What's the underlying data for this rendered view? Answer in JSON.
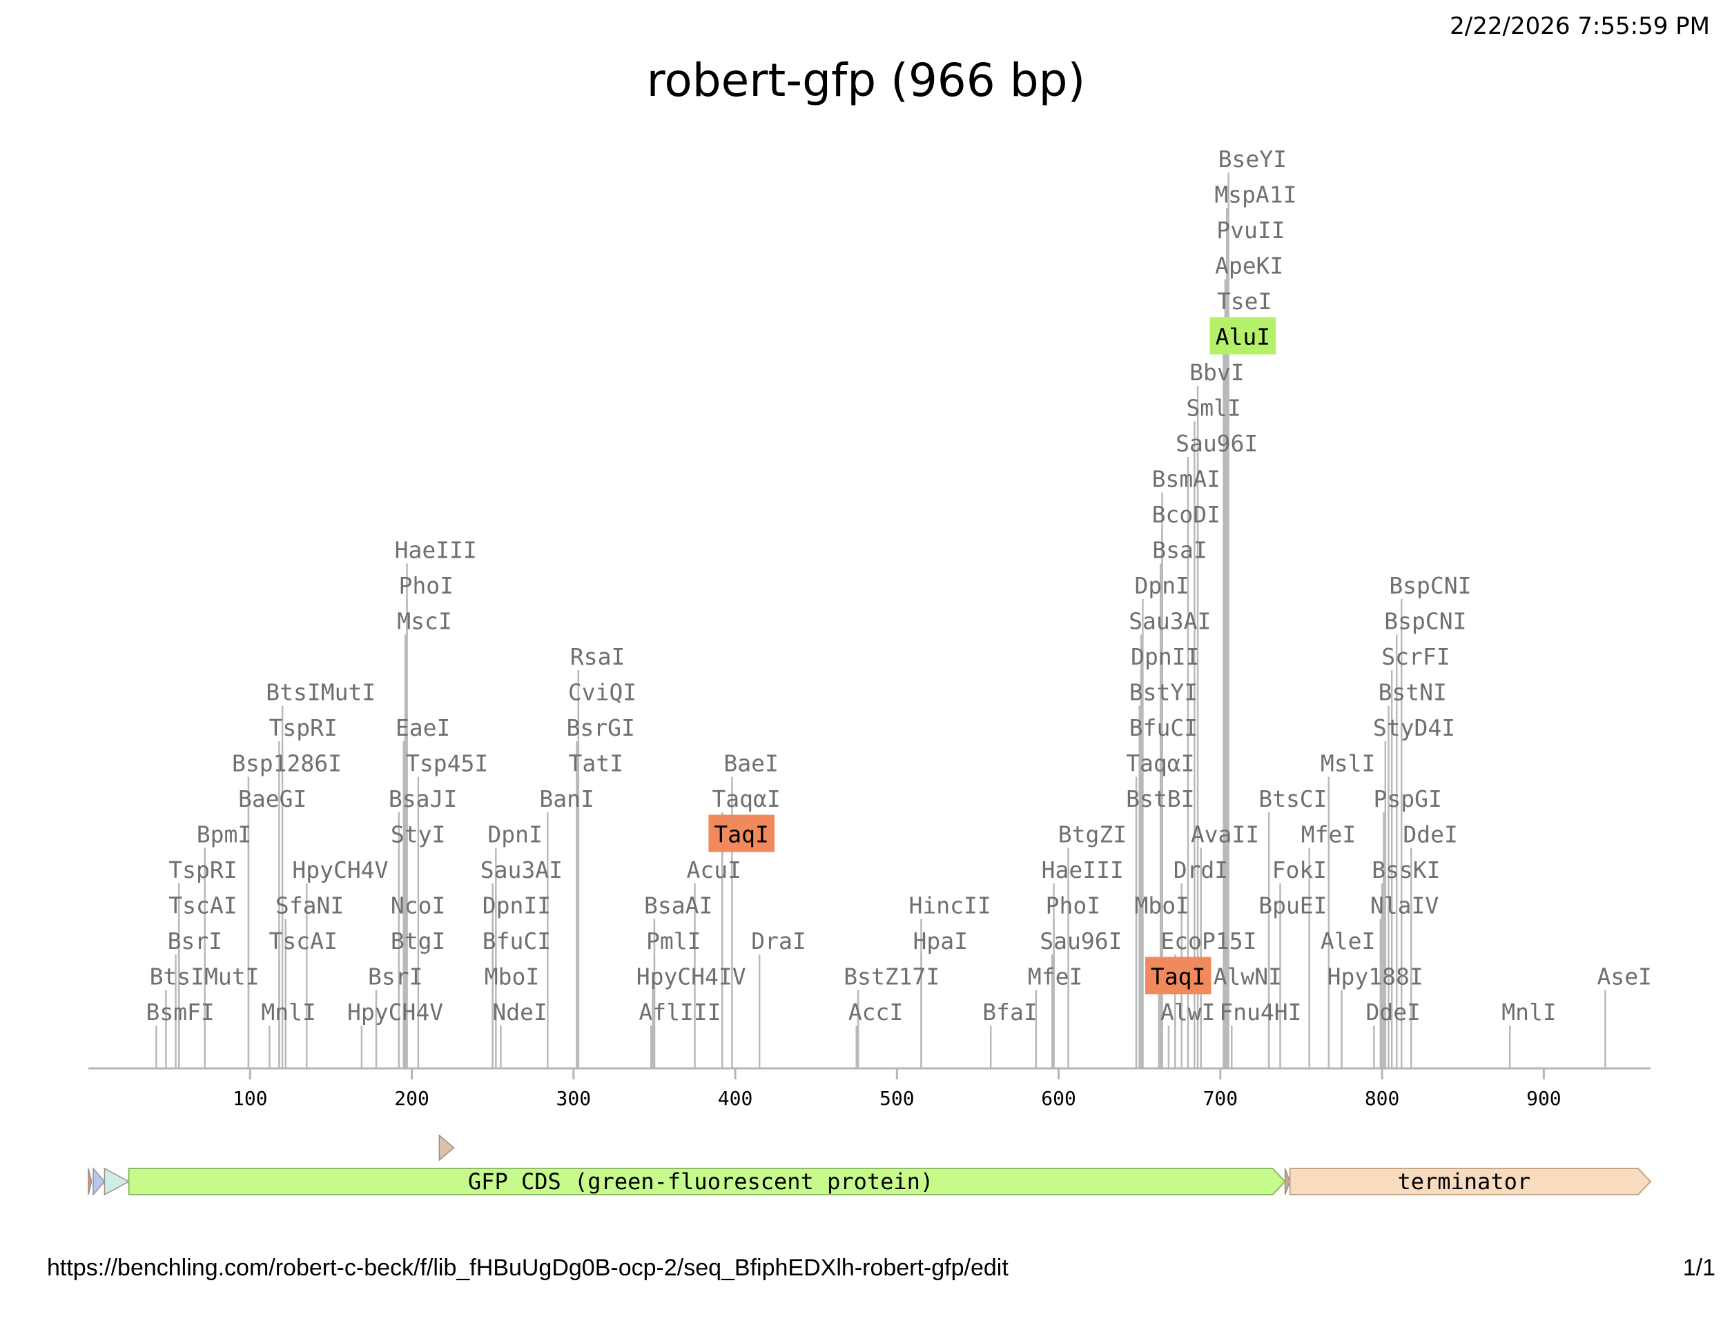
{
  "header": {
    "timestamp": "2/22/2026 7:55:59 PM",
    "title": "robert-gfp (966 bp)"
  },
  "footer": {
    "url": "https://benchling.com/robert-c-beck/f/lib_fHBuUgDg0B-ocp-2/seq_BfiphEDXlh-robert-gfp/edit",
    "page": "1/1"
  },
  "sequence": {
    "name": "robert-gfp",
    "length_bp": 966
  },
  "axis": {
    "ticks": [
      100,
      200,
      300,
      400,
      500,
      600,
      700,
      800,
      900
    ]
  },
  "colors": {
    "alui_highlight": "#b5f06a",
    "taqi_highlight": "#f08a5d",
    "cut_line": "#b9b9bd",
    "axis": "#b5b5b9"
  },
  "enzymes": [
    {
      "name": "BsmFI",
      "pos": 42,
      "row": 0
    },
    {
      "name": "BtsIMutI",
      "pos": 48,
      "row": 1
    },
    {
      "name": "BsrI",
      "pos": 54,
      "row": 2
    },
    {
      "name": "TscAI",
      "pos": 56,
      "row": 3
    },
    {
      "name": "TspRI",
      "pos": 56,
      "row": 4
    },
    {
      "name": "BpmI",
      "pos": 72,
      "row": 5
    },
    {
      "name": "BaeGI",
      "pos": 99,
      "row": 6
    },
    {
      "name": "Bsp1286I",
      "pos": 99,
      "row": 7
    },
    {
      "name": "MnlI",
      "pos": 112,
      "row": 0
    },
    {
      "name": "TscAI",
      "pos": 118,
      "row": 2
    },
    {
      "name": "SfaNI",
      "pos": 122,
      "row": 3
    },
    {
      "name": "TspRI",
      "pos": 118,
      "row": 8
    },
    {
      "name": "BtsIMutI",
      "pos": 120,
      "row": 9
    },
    {
      "name": "HpyCH4V",
      "pos": 135,
      "row": 4
    },
    {
      "name": "HpyCH4V",
      "pos": 169,
      "row": 0
    },
    {
      "name": "BsrI",
      "pos": 178,
      "row": 1
    },
    {
      "name": "BtgI",
      "pos": 192,
      "row": 2
    },
    {
      "name": "NcoI",
      "pos": 192,
      "row": 3
    },
    {
      "name": "StyI",
      "pos": 192,
      "row": 5
    },
    {
      "name": "BsaJI",
      "pos": 192,
      "row": 6
    },
    {
      "name": "EaeI",
      "pos": 195,
      "row": 8
    },
    {
      "name": "MscI",
      "pos": 196,
      "row": 11
    },
    {
      "name": "PhoI",
      "pos": 197,
      "row": 12
    },
    {
      "name": "HaeIII",
      "pos": 197,
      "row": 13
    },
    {
      "name": "Tsp45I",
      "pos": 204,
      "row": 7
    },
    {
      "name": "NdeI",
      "pos": 255,
      "row": 0
    },
    {
      "name": "MboI",
      "pos": 250,
      "row": 1
    },
    {
      "name": "BfuCI",
      "pos": 250,
      "row": 2
    },
    {
      "name": "DpnII",
      "pos": 250,
      "row": 3
    },
    {
      "name": "Sau3AI",
      "pos": 250,
      "row": 4
    },
    {
      "name": "DpnI",
      "pos": 252,
      "row": 5
    },
    {
      "name": "BanI",
      "pos": 284,
      "row": 6
    },
    {
      "name": "TatI",
      "pos": 302,
      "row": 7
    },
    {
      "name": "BsrGI",
      "pos": 302,
      "row": 8
    },
    {
      "name": "CviQI",
      "pos": 303,
      "row": 9
    },
    {
      "name": "RsaI",
      "pos": 303,
      "row": 10
    },
    {
      "name": "AflIII",
      "pos": 348,
      "row": 0
    },
    {
      "name": "HpyCH4IV",
      "pos": 349,
      "row": 1
    },
    {
      "name": "PmlI",
      "pos": 350,
      "row": 2
    },
    {
      "name": "BsaAI",
      "pos": 350,
      "row": 3
    },
    {
      "name": "AcuI",
      "pos": 375,
      "row": 4
    },
    {
      "name": "TaqI",
      "pos": 392,
      "row": 5,
      "highlight": "taqi"
    },
    {
      "name": "TaqαI",
      "pos": 392,
      "row": 6
    },
    {
      "name": "BaeI",
      "pos": 398,
      "row": 7
    },
    {
      "name": "DraI",
      "pos": 415,
      "row": 2
    },
    {
      "name": "AccI",
      "pos": 475,
      "row": 0
    },
    {
      "name": "BstZ17I",
      "pos": 476,
      "row": 1
    },
    {
      "name": "HpaI",
      "pos": 515,
      "row": 2
    },
    {
      "name": "HincII",
      "pos": 515,
      "row": 3
    },
    {
      "name": "BfaI",
      "pos": 558,
      "row": 0
    },
    {
      "name": "MfeI",
      "pos": 586,
      "row": 1
    },
    {
      "name": "Sau96I",
      "pos": 596,
      "row": 2
    },
    {
      "name": "PhoI",
      "pos": 597,
      "row": 3
    },
    {
      "name": "HaeIII",
      "pos": 597,
      "row": 4
    },
    {
      "name": "BtgZI",
      "pos": 606,
      "row": 5
    },
    {
      "name": "AlwI",
      "pos": 668,
      "row": 0
    },
    {
      "name": "TaqI",
      "pos": 662,
      "row": 1,
      "highlight": "taqi"
    },
    {
      "name": "EcoP15I",
      "pos": 672,
      "row": 2
    },
    {
      "name": "MboI",
      "pos": 652,
      "row": 3
    },
    {
      "name": "DrdI",
      "pos": 676,
      "row": 4
    },
    {
      "name": "AvaII",
      "pos": 688,
      "row": 5
    },
    {
      "name": "BstBI",
      "pos": 648,
      "row": 6
    },
    {
      "name": "TaqαI",
      "pos": 648,
      "row": 7
    },
    {
      "name": "BfuCI",
      "pos": 650,
      "row": 8
    },
    {
      "name": "BstYI",
      "pos": 650,
      "row": 9
    },
    {
      "name": "DpnII",
      "pos": 651,
      "row": 10
    },
    {
      "name": "Sau3AI",
      "pos": 651,
      "row": 11
    },
    {
      "name": "DpnI",
      "pos": 652,
      "row": 12
    },
    {
      "name": "BsaI",
      "pos": 663,
      "row": 13
    },
    {
      "name": "BcoDI",
      "pos": 664,
      "row": 14
    },
    {
      "name": "BsmAI",
      "pos": 664,
      "row": 15
    },
    {
      "name": "Sau96I",
      "pos": 680,
      "row": 16
    },
    {
      "name": "SmlI",
      "pos": 684,
      "row": 17
    },
    {
      "name": "BbvI",
      "pos": 686,
      "row": 18
    },
    {
      "name": "AluI",
      "pos": 702,
      "row": 19,
      "highlight": "alui"
    },
    {
      "name": "TseI",
      "pos": 703,
      "row": 20
    },
    {
      "name": "ApeKI",
      "pos": 703,
      "row": 21
    },
    {
      "name": "PvuII",
      "pos": 704,
      "row": 22
    },
    {
      "name": "MspA1I",
      "pos": 704,
      "row": 23
    },
    {
      "name": "BseYI",
      "pos": 705,
      "row": 24
    },
    {
      "name": "Fnu4HI",
      "pos": 707,
      "row": 0
    },
    {
      "name": "AlwNI",
      "pos": 702,
      "row": 1
    },
    {
      "name": "BpuEI",
      "pos": 730,
      "row": 3
    },
    {
      "name": "BtsCI",
      "pos": 730,
      "row": 6
    },
    {
      "name": "FokI",
      "pos": 737,
      "row": 4
    },
    {
      "name": "MfeI",
      "pos": 755,
      "row": 5
    },
    {
      "name": "AleI",
      "pos": 767,
      "row": 2
    },
    {
      "name": "MslI",
      "pos": 767,
      "row": 7
    },
    {
      "name": "Hpy188I",
      "pos": 775,
      "row": 1
    },
    {
      "name": "DdeI",
      "pos": 795,
      "row": 0
    },
    {
      "name": "NlaIV",
      "pos": 799,
      "row": 3
    },
    {
      "name": "BssKI",
      "pos": 800,
      "row": 4
    },
    {
      "name": "PspGI",
      "pos": 801,
      "row": 6
    },
    {
      "name": "StyD4I",
      "pos": 802,
      "row": 8
    },
    {
      "name": "BstNI",
      "pos": 804,
      "row": 9
    },
    {
      "name": "ScrFI",
      "pos": 806,
      "row": 10
    },
    {
      "name": "BspCNI",
      "pos": 809,
      "row": 11
    },
    {
      "name": "BspCNI",
      "pos": 812,
      "row": 12
    },
    {
      "name": "DdeI",
      "pos": 818,
      "row": 5
    },
    {
      "name": "MnlI",
      "pos": 879,
      "row": 0
    },
    {
      "name": "AseI",
      "pos": 938,
      "row": 1
    }
  ],
  "features": [
    {
      "name": "GFP CDS (green-fluorescent protein)",
      "start": 25,
      "end": 740,
      "fill": "#c6fb8c",
      "stroke": "#8fb868"
    },
    {
      "name": "terminator",
      "start": 743,
      "end": 966,
      "fill": "#f9dcbf",
      "stroke": "#c3a688"
    }
  ],
  "small_markers": [
    {
      "start": 0,
      "end": 2,
      "fill": "#e98e6a"
    },
    {
      "start": 3,
      "end": 10,
      "fill": "#b9c7ef"
    },
    {
      "start": 10,
      "end": 25,
      "fill": "#cdeee7"
    },
    {
      "start": 740,
      "end": 743,
      "fill": "#c9a896"
    },
    {
      "start": 217,
      "end": 226,
      "fill": "#dbc3a8",
      "track": "upper"
    }
  ]
}
